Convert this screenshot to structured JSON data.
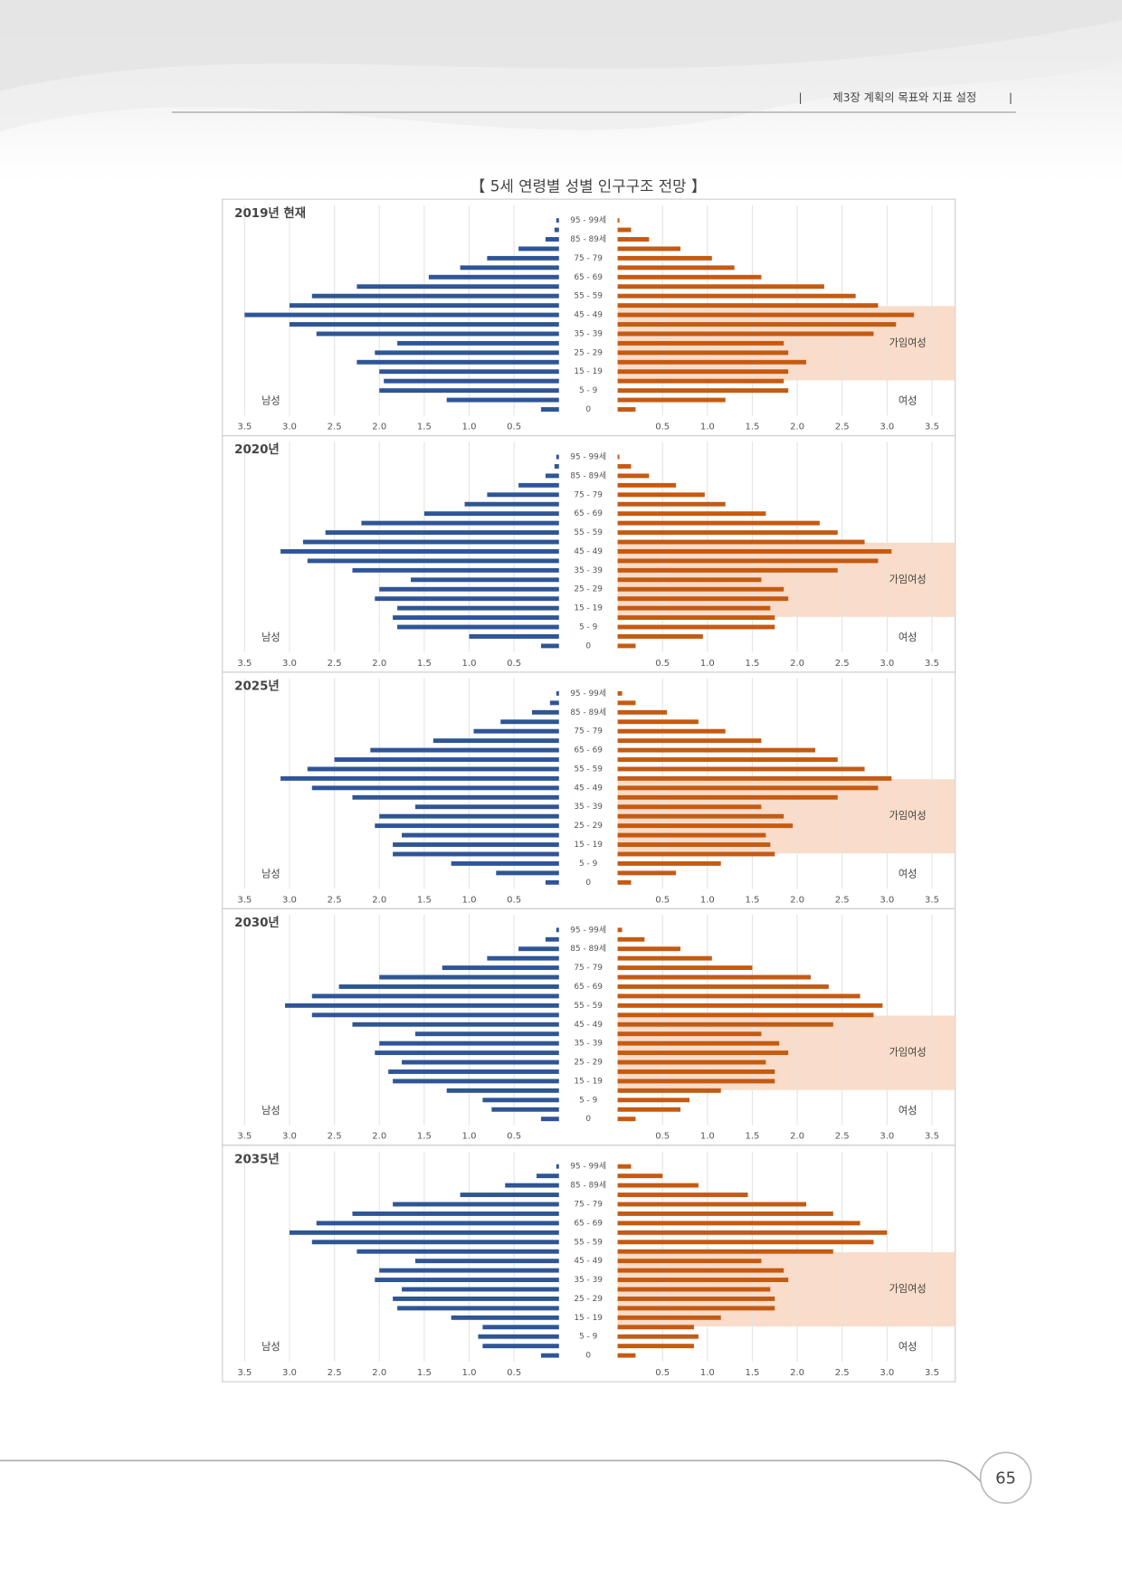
{
  "header": {
    "chapter": "제3장 계획의 목표와 지표 설정"
  },
  "title": "【 5세 연령별 성별 인구구조 전망 】",
  "page_number": "65",
  "chart_data": [
    {
      "type": "pyramid",
      "title": "2019년 현재",
      "annotation": "가임여성",
      "categories": [
        "0",
        null,
        "5 - 9",
        null,
        "15 - 19",
        null,
        "25 - 29",
        null,
        "35 - 39",
        null,
        "45 - 49",
        null,
        "55 - 59",
        null,
        "65 - 69",
        null,
        "75 - 79",
        null,
        "85 - 89세",
        null,
        "95 - 99세"
      ],
      "series": [
        {
          "name": "남성",
          "color": "#2e5596",
          "values": [
            0.2,
            1.25,
            2.0,
            1.95,
            2.0,
            2.25,
            2.05,
            1.8,
            2.7,
            3.0,
            3.5,
            3.0,
            2.75,
            2.25,
            1.45,
            1.1,
            0.8,
            0.45,
            0.15,
            0.05,
            0.03
          ]
        },
        {
          "name": "여성",
          "color": "#c55a11",
          "values": [
            0.2,
            1.2,
            1.9,
            1.85,
            1.9,
            2.1,
            1.9,
            1.85,
            2.85,
            3.1,
            3.3,
            2.9,
            2.65,
            2.3,
            1.6,
            1.3,
            1.05,
            0.7,
            0.35,
            0.15,
            0.02
          ]
        }
      ],
      "xlim": [
        0,
        3.5
      ],
      "xticks": [
        0.5,
        {
          "value": 1,
          "label": "1.0"
        },
        1.5,
        {
          "value": 2,
          "label": "2.0"
        },
        2.5,
        {
          "value": 3,
          "label": "3.0"
        },
        3.5
      ]
    },
    {
      "type": "pyramid",
      "title": "2020년",
      "annotation": "가임여성",
      "categories": [
        "0",
        null,
        "5 - 9",
        null,
        "15 - 19",
        null,
        "25 - 29",
        null,
        "35 - 39",
        null,
        "45 - 49",
        null,
        "55 - 59",
        null,
        "65 - 69",
        null,
        "75 - 79",
        null,
        "85 - 89세",
        null,
        "95 - 99세"
      ],
      "series": [
        {
          "name": "남성",
          "color": "#2e5596",
          "values": [
            0.2,
            1.0,
            1.8,
            1.85,
            1.8,
            2.05,
            2.0,
            1.65,
            2.3,
            2.8,
            3.1,
            2.85,
            2.6,
            2.2,
            1.5,
            1.05,
            0.8,
            0.45,
            0.15,
            0.05,
            0.03
          ]
        },
        {
          "name": "여성",
          "color": "#c55a11",
          "values": [
            0.2,
            0.95,
            1.75,
            1.75,
            1.7,
            1.9,
            1.85,
            1.6,
            2.45,
            2.9,
            3.05,
            2.75,
            2.45,
            2.25,
            1.65,
            1.2,
            0.97,
            0.65,
            0.35,
            0.15,
            0.02
          ]
        }
      ],
      "xlim": [
        0,
        3.5
      ],
      "xticks": [
        0.5,
        {
          "value": 1,
          "label": "1.0"
        },
        1.5,
        {
          "value": 2,
          "label": "2.0"
        },
        2.5,
        {
          "value": 3,
          "label": "3.0"
        },
        3.5
      ]
    },
    {
      "type": "pyramid",
      "title": "2025년",
      "annotation": "가임여성",
      "categories": [
        "0",
        null,
        "5 - 9",
        null,
        "15 - 19",
        null,
        "25 - 29",
        null,
        "35 - 39",
        null,
        "45 - 49",
        null,
        "55 - 59",
        null,
        "65 - 69",
        null,
        "75 - 79",
        null,
        "85 - 89세",
        null,
        "95 - 99세"
      ],
      "series": [
        {
          "name": "남성",
          "color": "#2e5596",
          "values": [
            0.15,
            0.7,
            1.2,
            1.85,
            1.85,
            1.75,
            2.05,
            2.0,
            1.6,
            2.3,
            2.75,
            3.1,
            2.8,
            2.5,
            2.1,
            1.4,
            0.95,
            0.65,
            0.3,
            0.1,
            0.03
          ]
        },
        {
          "name": "여성",
          "color": "#c55a11",
          "values": [
            0.15,
            0.65,
            1.15,
            1.75,
            1.7,
            1.65,
            1.95,
            1.85,
            1.6,
            2.45,
            2.9,
            3.05,
            2.75,
            2.45,
            2.2,
            1.6,
            1.2,
            0.9,
            0.55,
            0.2,
            0.05
          ]
        }
      ],
      "xlim": [
        0,
        3.5
      ],
      "xticks": [
        0.5,
        {
          "value": 1,
          "label": "1.0"
        },
        1.5,
        {
          "value": 2,
          "label": "2.0"
        },
        2.5,
        {
          "value": 3,
          "label": "3.0"
        },
        3.5
      ]
    },
    {
      "type": "pyramid",
      "title": "2030년",
      "annotation": "가임여성",
      "categories": [
        "0",
        null,
        "5 - 9",
        null,
        "15 - 19",
        null,
        "25 - 29",
        null,
        "35 - 39",
        null,
        "45 - 49",
        null,
        "55 - 59",
        null,
        "65 - 69",
        null,
        "75 - 79",
        null,
        "85 - 89세",
        null,
        "95 - 99세"
      ],
      "series": [
        {
          "name": "남성",
          "color": "#2e5596",
          "values": [
            0.2,
            0.75,
            0.85,
            1.25,
            1.85,
            1.9,
            1.75,
            2.05,
            2.0,
            1.6,
            2.3,
            2.75,
            3.05,
            2.75,
            2.45,
            2.0,
            1.3,
            0.8,
            0.45,
            0.15,
            0.03
          ]
        },
        {
          "name": "여성",
          "color": "#c55a11",
          "values": [
            0.2,
            0.7,
            0.8,
            1.15,
            1.75,
            1.75,
            1.65,
            1.9,
            1.8,
            1.6,
            2.4,
            2.85,
            2.95,
            2.7,
            2.35,
            2.15,
            1.5,
            1.05,
            0.7,
            0.3,
            0.05
          ]
        }
      ],
      "xlim": [
        0,
        3.5
      ],
      "xticks": [
        0.5,
        {
          "value": 1,
          "label": "1.0"
        },
        1.5,
        {
          "value": 2,
          "label": "2.0"
        },
        2.5,
        {
          "value": 3,
          "label": "3.0"
        },
        3.5
      ]
    },
    {
      "type": "pyramid",
      "title": "2035년",
      "annotation": "가임여성",
      "categories": [
        "0",
        null,
        "5 - 9",
        null,
        "15 - 19",
        null,
        "25 - 29",
        null,
        "35 - 39",
        null,
        "45 - 49",
        null,
        "55 - 59",
        null,
        "65 - 69",
        null,
        "75 - 79",
        null,
        "85 - 89세",
        null,
        "95 - 99세"
      ],
      "series": [
        {
          "name": "남성",
          "color": "#2e5596",
          "values": [
            0.2,
            0.85,
            0.9,
            0.85,
            1.2,
            1.8,
            1.85,
            1.75,
            2.05,
            2.0,
            1.6,
            2.25,
            2.75,
            3.0,
            2.7,
            2.3,
            1.85,
            1.1,
            0.6,
            0.25,
            0.03
          ]
        },
        {
          "name": "여성",
          "color": "#c55a11",
          "values": [
            0.2,
            0.85,
            0.9,
            0.85,
            1.15,
            1.75,
            1.75,
            1.7,
            1.9,
            1.85,
            1.6,
            2.4,
            2.85,
            3.0,
            2.7,
            2.4,
            2.1,
            1.45,
            0.9,
            0.5,
            0.15
          ]
        }
      ],
      "xlim": [
        0,
        3.5
      ],
      "xticks": [
        0.5,
        {
          "value": 1,
          "label": "1.0"
        },
        1.5,
        {
          "value": 2,
          "label": "2.0"
        },
        2.5,
        {
          "value": 3,
          "label": "3.0"
        },
        3.5
      ]
    }
  ]
}
